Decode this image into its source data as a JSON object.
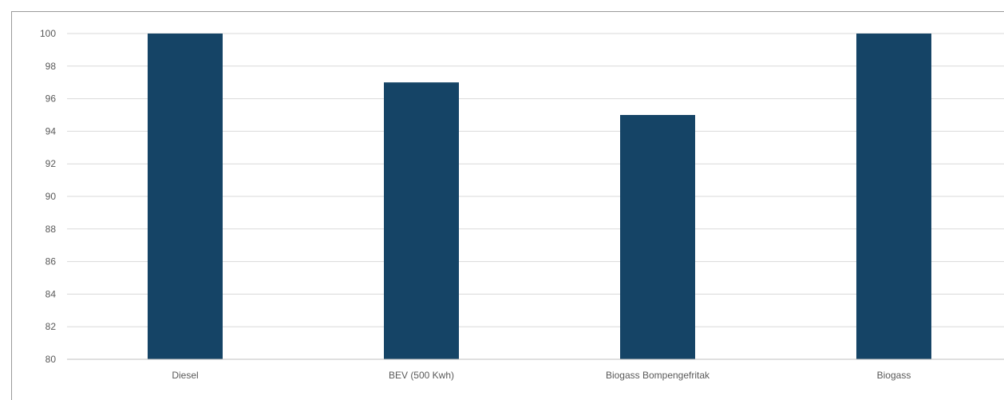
{
  "chart_data": {
    "type": "bar",
    "categories": [
      "Diesel",
      "BEV (500 Kwh)",
      "Biogass Bompengefritak",
      "Biogass"
    ],
    "values": [
      100,
      97,
      95,
      100
    ],
    "ylim": [
      80,
      100
    ],
    "yticks": [
      80,
      82,
      84,
      86,
      88,
      90,
      92,
      94,
      96,
      98,
      100
    ],
    "grid": true,
    "legend": "none",
    "colors": {
      "bar": "#154466",
      "grid": "#d9d9d9",
      "axis": "#bfbfbf",
      "frame": "#9a9a9a"
    }
  }
}
